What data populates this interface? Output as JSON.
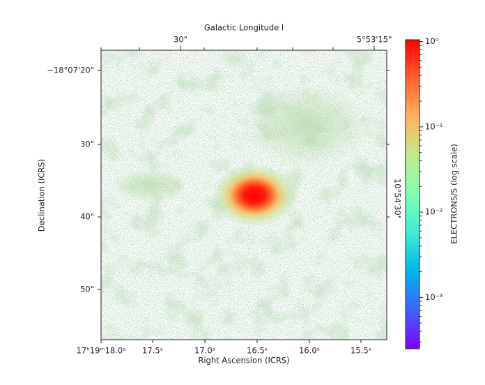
{
  "chart_data": {
    "type": "image",
    "top_axis_label": "Galactic Longitude l",
    "xlabel": "Right Ascension (ICRS)",
    "ylabel": "Declination (ICRS)",
    "xticks": [
      "17ʰ19ᵐ18.0ˢ",
      "17.5ˢ",
      "17.0ˢ",
      "16.5ˢ",
      "16.0ˢ",
      "15.5ˢ"
    ],
    "yticks": [
      "−18°07'20\"",
      "30\"",
      "40\"",
      "50\""
    ],
    "top_ticks": [
      "30\"",
      "5°53'15\""
    ],
    "right_ticks": [
      "10°54'30\""
    ],
    "colorbar": {
      "label": "ELECTRONS/S (log scale)",
      "scale": "log",
      "colormap": "rainbow",
      "lim": [
        0.00025,
        1.05
      ],
      "ticks": [
        {
          "value": 1,
          "label": "10⁰"
        },
        {
          "value": 0.1,
          "label": "10⁻¹"
        },
        {
          "value": 0.01,
          "label": "10⁻²"
        },
        {
          "value": 0.001,
          "label": "10⁻³"
        }
      ]
    }
  }
}
